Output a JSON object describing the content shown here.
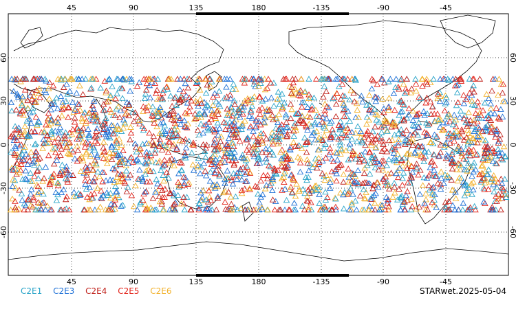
{
  "map": {
    "projection": "cylindrical-equidistant",
    "lon_center_label_sequence": "0 to 360 (Pacific centered)",
    "x_top_ticks": [
      "45",
      "90",
      "135",
      "180",
      "-135",
      "-90",
      "-45"
    ],
    "x_bottom_ticks": [
      "45",
      "90",
      "135",
      "180",
      "-135",
      "-90",
      "-45"
    ],
    "y_ticks": [
      "60",
      "30",
      "0",
      "-30",
      "-60"
    ],
    "lat_range": [
      -90,
      90
    ],
    "lon_range": [
      0,
      360
    ],
    "grid": true,
    "coastlines_color": "#000000"
  },
  "legend": {
    "items": [
      {
        "label": "C2E1",
        "color": "#27a3c8"
      },
      {
        "label": "C2E3",
        "color": "#1c6fd6"
      },
      {
        "label": "C2E4",
        "color": "#c0211b"
      },
      {
        "label": "C2E5",
        "color": "#e2231a"
      },
      {
        "label": "C2E6",
        "color": "#f2b12a"
      }
    ]
  },
  "credit": "STARwet.2025-05-04",
  "markers": {
    "shape": "triangle-outline",
    "lat_band": [
      -45,
      45
    ]
  }
}
